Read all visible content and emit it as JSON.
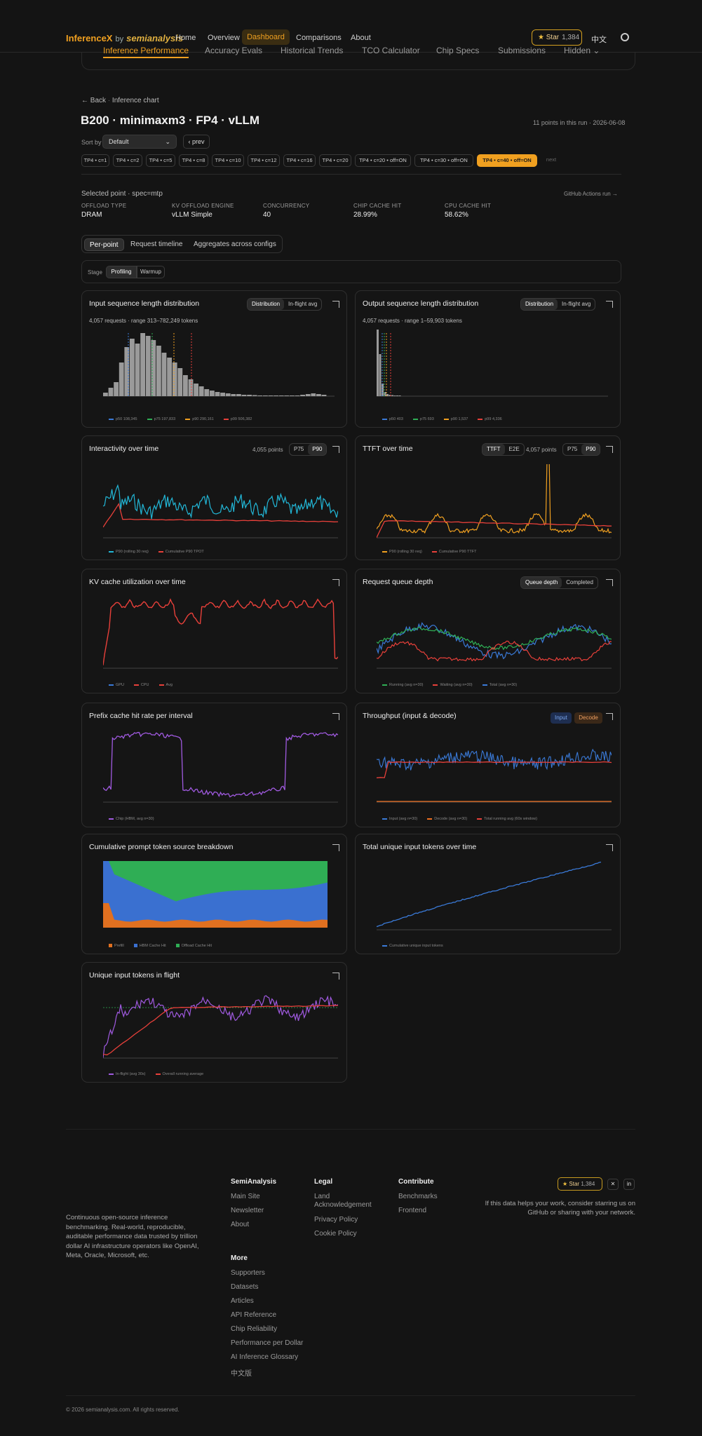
{
  "header": {
    "logo_main": "InferenceX",
    "logo_by": "by",
    "logo_brand": "semianalysis",
    "nav": [
      "Home",
      "Overview",
      "Dashboard",
      "Comparisons",
      "About"
    ],
    "star_label": "Star",
    "star_count": "1,384",
    "lang": "中文"
  },
  "subnav": [
    "Inference Performance",
    "Accuracy Evals",
    "Historical Trends",
    "TCO Calculator",
    "Chip Specs",
    "Submissions",
    "Hidden"
  ],
  "breadcrumb": {
    "back": "Back",
    "current": "Inference chart"
  },
  "page": {
    "title": "B200 · minimaxm3 · FP4 · vLLM",
    "run_info": "11 points in this run · 2026-06-08",
    "sort_label": "Sort by",
    "sort_value": "Default",
    "prev": "prev",
    "next": "next",
    "chips": [
      "TP4 • c=1",
      "TP4 • c=2",
      "TP4 • c=5",
      "TP4 • c=8",
      "TP4 • c=10",
      "TP4 • c=12",
      "TP4 • c=16",
      "TP4 • c=20",
      "TP4 • c=20 • off=ON",
      "TP4 • c=30 • off=ON",
      "TP4 • c=40 • off=ON"
    ],
    "selected_point": "Selected point · spec=mtp",
    "github_link": "GitHub Actions run →",
    "meta": [
      {
        "k": "OFFLOAD TYPE",
        "v": "DRAM"
      },
      {
        "k": "KV OFFLOAD ENGINE",
        "v": "vLLM Simple"
      },
      {
        "k": "CONCURRENCY",
        "v": "40"
      },
      {
        "k": "CHIP CACHE HIT",
        "v": "28.99%"
      },
      {
        "k": "CPU CACHE HIT",
        "v": "58.62%"
      }
    ],
    "tabs": [
      "Per-point",
      "Request timeline",
      "Aggregates across configs"
    ],
    "stage_label": "Stage",
    "stages": [
      "Profiling",
      "Warmup"
    ]
  },
  "panels": {
    "isl": {
      "title": "Input sequence length distribution",
      "toggle": [
        "Distribution",
        "In-flight avg"
      ],
      "sub": "4,057 requests · range 313–782,249 tokens",
      "legend": [
        "p50 108,345",
        "p75 197,833",
        "p90 290,161",
        "p99 506,382"
      ]
    },
    "osl": {
      "title": "Output sequence length distribution",
      "toggle": [
        "Distribution",
        "In-flight avg"
      ],
      "sub": "4,057 requests · range 1–59,903 tokens",
      "legend": [
        "p50 403",
        "p75 693",
        "p90 1,537",
        "p99 4,336"
      ]
    },
    "inter": {
      "title": "Interactivity over time",
      "points": "4,055 points",
      "toggle": [
        "P75",
        "P90"
      ],
      "legend": [
        "P90 (rolling 30 req)",
        "Cumulative P90 TPOT"
      ]
    },
    "ttft": {
      "title": "TTFT over time",
      "toggle1": [
        "TTFT",
        "E2E"
      ],
      "points": "4,057 points",
      "toggle2": [
        "P75",
        "P90"
      ],
      "legend": [
        "P90 (rolling 30 req)",
        "Cumulative P90 TTFT"
      ]
    },
    "kv": {
      "title": "KV cache utilization over time",
      "legend": [
        "GPU",
        "CPU",
        "Avg"
      ]
    },
    "queue": {
      "title": "Request queue depth",
      "toggle": [
        "Queue depth",
        "Completed"
      ],
      "legend": [
        "Running (avg n=30)",
        "Waiting (avg n=30)",
        "Total (avg n=30)"
      ]
    },
    "prefix": {
      "title": "Prefix cache hit rate per interval",
      "legend": [
        "Chip (HBM, avg n=30)"
      ]
    },
    "thru": {
      "title": "Throughput (input & decode)",
      "toggle": [
        "Input",
        "Decode"
      ],
      "legend": [
        "Input (avg n=30)",
        "Decode (avg n=30)",
        "Total running avg (60s window)"
      ]
    },
    "cum": {
      "title": "Cumulative prompt token source breakdown",
      "legend": [
        "Prefill",
        "HBM Cache Hit",
        "Offload Cache Hit"
      ]
    },
    "total": {
      "title": "Total unique input tokens over time",
      "legend": [
        "Cumulative unique input tokens"
      ]
    },
    "unique": {
      "title": "Unique input tokens in flight",
      "legend": [
        "In-flight (avg 30s)",
        "Overall running average"
      ]
    }
  },
  "footer": {
    "desc": "Continuous open-source inference benchmarking. Real-world, reproducible, auditable performance data trusted by trillion dollar AI infrastructure operators like OpenAI, Meta, Oracle, Microsoft, etc.",
    "col1_title": "SemiAnalysis",
    "col1": [
      "Main Site",
      "Newsletter",
      "About"
    ],
    "col2_title": "Legal",
    "col2": [
      "Land Acknowledgement",
      "Privacy Policy",
      "Cookie Policy"
    ],
    "col3_title": "Contribute",
    "col3": [
      "Benchmarks",
      "Frontend"
    ],
    "more_title": "More",
    "more": [
      "Supporters",
      "Datasets",
      "Articles",
      "API Reference",
      "Chip Reliability",
      "Performance per Dollar",
      "AI Inference Glossary",
      "中文版"
    ],
    "star_label": "Star",
    "star_count": "1,384",
    "note": "If this data helps your work, consider starring us on GitHub or sharing with your network.",
    "copyright": "© 2026 semianalysis.com. All rights reserved."
  },
  "colors": {
    "accent": "#f0a020",
    "cyan": "#22b8d8",
    "red": "#e8403a",
    "orange": "#f0a020",
    "blue": "#3a7ad8",
    "green": "#2fae55",
    "purple": "#a05ae0"
  }
}
